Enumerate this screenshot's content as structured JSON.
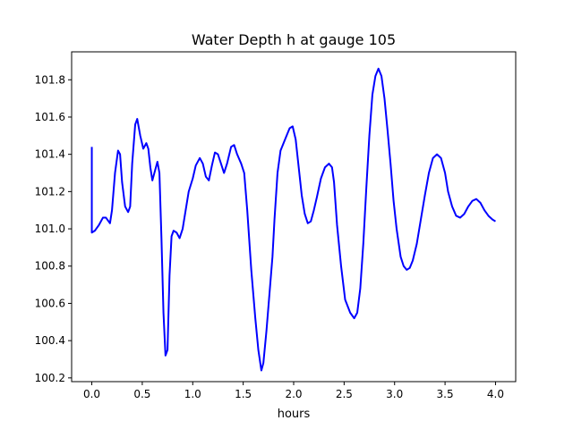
{
  "chart_data": {
    "type": "line",
    "title": "Water Depth h at gauge 105",
    "xlabel": "hours",
    "ylabel": "",
    "xlim": [
      -0.2,
      4.2
    ],
    "ylim": [
      100.18,
      101.95
    ],
    "xticks": [
      {
        "value": 0.0,
        "label": "0.0"
      },
      {
        "value": 0.5,
        "label": "0.5"
      },
      {
        "value": 1.0,
        "label": "1.0"
      },
      {
        "value": 1.5,
        "label": "1.5"
      },
      {
        "value": 2.0,
        "label": "2.0"
      },
      {
        "value": 2.5,
        "label": "2.5"
      },
      {
        "value": 3.0,
        "label": "3.0"
      },
      {
        "value": 3.5,
        "label": "3.5"
      },
      {
        "value": 4.0,
        "label": "4.0"
      }
    ],
    "yticks": [
      {
        "value": 100.2,
        "label": "100.2"
      },
      {
        "value": 100.4,
        "label": "100.4"
      },
      {
        "value": 100.6,
        "label": "100.6"
      },
      {
        "value": 100.8,
        "label": "100.8"
      },
      {
        "value": 101.0,
        "label": "101.0"
      },
      {
        "value": 101.2,
        "label": "101.2"
      },
      {
        "value": 101.4,
        "label": "101.4"
      },
      {
        "value": 101.6,
        "label": "101.6"
      },
      {
        "value": 101.8,
        "label": "101.8"
      }
    ],
    "grid": false,
    "legend": "none",
    "series": [
      {
        "color": "#0000ff",
        "points": [
          [
            0.0,
            101.44
          ],
          [
            0.0,
            100.98
          ],
          [
            0.03,
            100.99
          ],
          [
            0.07,
            101.02
          ],
          [
            0.11,
            101.06
          ],
          [
            0.14,
            101.06
          ],
          [
            0.18,
            101.03
          ],
          [
            0.2,
            101.1
          ],
          [
            0.23,
            101.3
          ],
          [
            0.26,
            101.42
          ],
          [
            0.28,
            101.4
          ],
          [
            0.3,
            101.25
          ],
          [
            0.33,
            101.12
          ],
          [
            0.36,
            101.09
          ],
          [
            0.38,
            101.12
          ],
          [
            0.4,
            101.35
          ],
          [
            0.43,
            101.56
          ],
          [
            0.45,
            101.59
          ],
          [
            0.48,
            101.5
          ],
          [
            0.51,
            101.43
          ],
          [
            0.54,
            101.46
          ],
          [
            0.56,
            101.43
          ],
          [
            0.58,
            101.33
          ],
          [
            0.6,
            101.26
          ],
          [
            0.62,
            101.3
          ],
          [
            0.65,
            101.36
          ],
          [
            0.67,
            101.3
          ],
          [
            0.69,
            100.95
          ],
          [
            0.71,
            100.55
          ],
          [
            0.73,
            100.32
          ],
          [
            0.75,
            100.35
          ],
          [
            0.77,
            100.75
          ],
          [
            0.79,
            100.96
          ],
          [
            0.81,
            100.99
          ],
          [
            0.84,
            100.98
          ],
          [
            0.87,
            100.95
          ],
          [
            0.9,
            101.0
          ],
          [
            0.93,
            101.1
          ],
          [
            0.96,
            101.2
          ],
          [
            1.0,
            101.27
          ],
          [
            1.03,
            101.34
          ],
          [
            1.07,
            101.38
          ],
          [
            1.1,
            101.35
          ],
          [
            1.13,
            101.28
          ],
          [
            1.16,
            101.26
          ],
          [
            1.19,
            101.34
          ],
          [
            1.22,
            101.41
          ],
          [
            1.25,
            101.4
          ],
          [
            1.28,
            101.35
          ],
          [
            1.31,
            101.3
          ],
          [
            1.34,
            101.35
          ],
          [
            1.38,
            101.44
          ],
          [
            1.41,
            101.45
          ],
          [
            1.44,
            101.4
          ],
          [
            1.48,
            101.35
          ],
          [
            1.51,
            101.3
          ],
          [
            1.54,
            101.1
          ],
          [
            1.58,
            100.78
          ],
          [
            1.62,
            100.52
          ],
          [
            1.65,
            100.35
          ],
          [
            1.68,
            100.24
          ],
          [
            1.7,
            100.28
          ],
          [
            1.73,
            100.45
          ],
          [
            1.76,
            100.65
          ],
          [
            1.79,
            100.85
          ],
          [
            1.81,
            101.05
          ],
          [
            1.84,
            101.3
          ],
          [
            1.87,
            101.42
          ],
          [
            1.9,
            101.46
          ],
          [
            1.93,
            101.5
          ],
          [
            1.96,
            101.54
          ],
          [
            1.99,
            101.55
          ],
          [
            2.02,
            101.48
          ],
          [
            2.05,
            101.33
          ],
          [
            2.08,
            101.18
          ],
          [
            2.11,
            101.08
          ],
          [
            2.14,
            101.03
          ],
          [
            2.17,
            101.04
          ],
          [
            2.2,
            101.1
          ],
          [
            2.23,
            101.17
          ],
          [
            2.27,
            101.27
          ],
          [
            2.31,
            101.33
          ],
          [
            2.35,
            101.35
          ],
          [
            2.38,
            101.33
          ],
          [
            2.4,
            101.25
          ],
          [
            2.43,
            101.02
          ],
          [
            2.47,
            100.8
          ],
          [
            2.51,
            100.62
          ],
          [
            2.56,
            100.55
          ],
          [
            2.6,
            100.52
          ],
          [
            2.63,
            100.55
          ],
          [
            2.66,
            100.68
          ],
          [
            2.69,
            100.92
          ],
          [
            2.72,
            101.22
          ],
          [
            2.75,
            101.5
          ],
          [
            2.78,
            101.72
          ],
          [
            2.81,
            101.82
          ],
          [
            2.84,
            101.86
          ],
          [
            2.87,
            101.82
          ],
          [
            2.9,
            101.7
          ],
          [
            2.93,
            101.53
          ],
          [
            2.96,
            101.35
          ],
          [
            2.99,
            101.15
          ],
          [
            3.02,
            101.0
          ],
          [
            3.06,
            100.85
          ],
          [
            3.09,
            100.8
          ],
          [
            3.12,
            100.78
          ],
          [
            3.15,
            100.79
          ],
          [
            3.18,
            100.83
          ],
          [
            3.22,
            100.92
          ],
          [
            3.26,
            101.05
          ],
          [
            3.3,
            101.18
          ],
          [
            3.34,
            101.3
          ],
          [
            3.38,
            101.38
          ],
          [
            3.42,
            101.4
          ],
          [
            3.46,
            101.38
          ],
          [
            3.5,
            101.3
          ],
          [
            3.53,
            101.2
          ],
          [
            3.57,
            101.12
          ],
          [
            3.61,
            101.07
          ],
          [
            3.65,
            101.06
          ],
          [
            3.69,
            101.08
          ],
          [
            3.73,
            101.12
          ],
          [
            3.77,
            101.15
          ],
          [
            3.81,
            101.16
          ],
          [
            3.85,
            101.14
          ],
          [
            3.89,
            101.1
          ],
          [
            3.93,
            101.07
          ],
          [
            3.97,
            101.05
          ],
          [
            4.0,
            101.04
          ]
        ]
      }
    ]
  }
}
